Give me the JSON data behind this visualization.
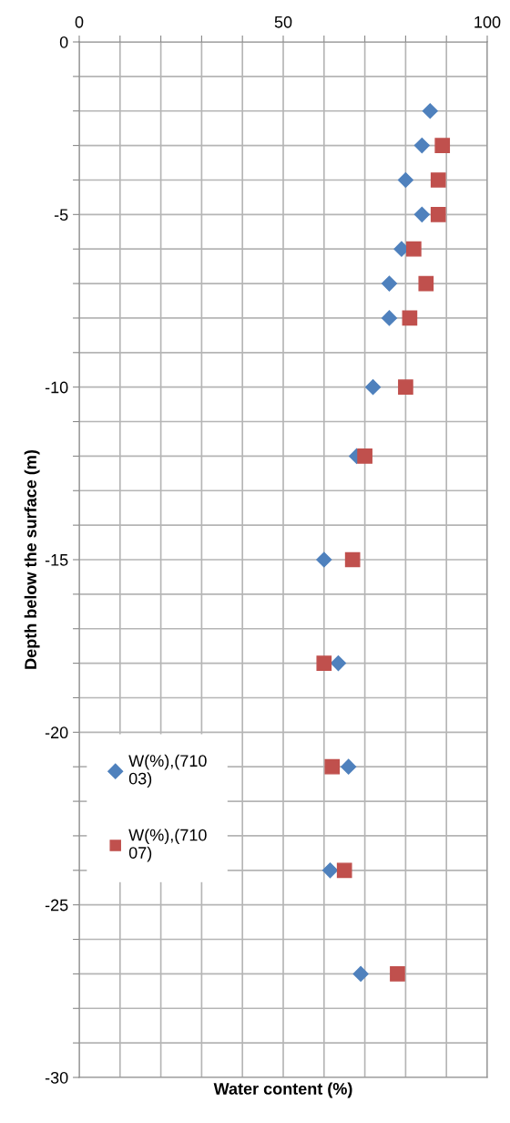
{
  "chart_data": {
    "type": "scatter",
    "xlabel": "Water content (%)",
    "ylabel": "Depth below the surface (m)",
    "xlim": [
      0,
      100
    ],
    "ylim": [
      -30,
      0
    ],
    "xticks": [
      0,
      {
        "value": 10,
        "label": null
      },
      {
        "value": 20,
        "label": null
      },
      {
        "value": 30,
        "label": null
      },
      {
        "value": 40,
        "label": null
      },
      50,
      {
        "value": 60,
        "label": null
      },
      {
        "value": 70,
        "label": null
      },
      {
        "value": 80,
        "label": null
      },
      {
        "value": 90,
        "label": null
      },
      100
    ],
    "yticks": [
      -30,
      {
        "value": -29,
        "label": null
      },
      {
        "value": -28,
        "label": null
      },
      {
        "value": -27,
        "label": null
      },
      {
        "value": -26,
        "label": null
      },
      -25,
      {
        "value": -24,
        "label": null
      },
      {
        "value": -23,
        "label": null
      },
      {
        "value": -22,
        "label": null
      },
      {
        "value": -21,
        "label": null
      },
      -20,
      {
        "value": -19,
        "label": null
      },
      {
        "value": -18,
        "label": null
      },
      {
        "value": -17,
        "label": null
      },
      {
        "value": -16,
        "label": null
      },
      -15,
      {
        "value": -14,
        "label": null
      },
      {
        "value": -13,
        "label": null
      },
      {
        "value": -12,
        "label": null
      },
      {
        "value": -11,
        "label": null
      },
      -10,
      {
        "value": -9,
        "label": null
      },
      {
        "value": -8,
        "label": null
      },
      {
        "value": -7,
        "label": null
      },
      {
        "value": -6,
        "label": null
      },
      -5,
      {
        "value": -4,
        "label": null
      },
      {
        "value": -3,
        "label": null
      },
      {
        "value": -2,
        "label": null
      },
      {
        "value": -1,
        "label": null
      },
      0
    ],
    "grid": true,
    "legend": "left",
    "series": [
      {
        "name": "W(%),(71003)",
        "color": "#4f81bd",
        "marker": "diamond",
        "x": [
          86,
          84,
          80,
          84,
          79,
          76,
          76,
          72,
          68,
          60,
          63.5,
          66,
          61.5,
          69
        ],
        "values": [
          -2,
          -3,
          -4,
          -5,
          -6,
          -7,
          -8,
          -10,
          -12,
          -15,
          -18,
          -21,
          -24,
          -27
        ]
      },
      {
        "name": "W(%),(71007)",
        "color": "#c0504d",
        "marker": "square",
        "x": [
          89,
          88,
          88,
          82,
          85,
          81,
          80,
          70,
          67,
          60,
          62,
          65,
          78
        ],
        "values": [
          -3,
          -4,
          -5,
          -6,
          -7,
          -8,
          -10,
          -12,
          -15,
          -18,
          -21,
          -24,
          -27
        ]
      }
    ]
  }
}
